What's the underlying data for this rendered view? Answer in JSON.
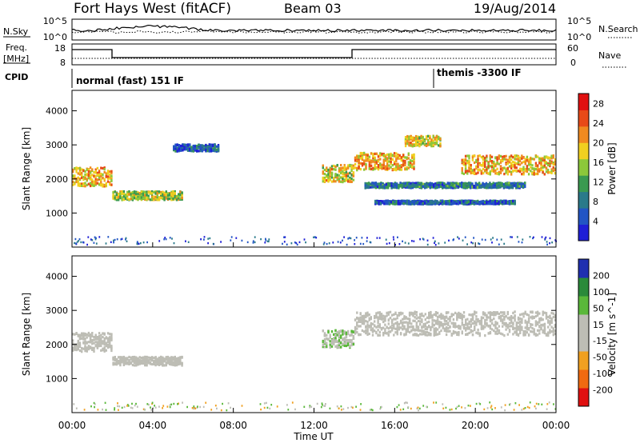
{
  "header": {
    "station": "Fort Hays West (fitACF)",
    "beam": "Beam 03",
    "date": "19/Aug/2014"
  },
  "noise_panel": {
    "left_label": "N.Sky",
    "right_label": "N.Search",
    "left_ticks": [
      "10^5",
      "10^0"
    ],
    "right_ticks": [
      "10^5",
      "10^0"
    ]
  },
  "freq_panel": {
    "left_label_1": "Freq.",
    "left_label_2": "[MHz]",
    "right_label": "Nave",
    "left_ticks": [
      "18",
      "8"
    ],
    "right_ticks": [
      "60",
      "0"
    ]
  },
  "cpid_panel": {
    "label": "CPID",
    "modes": [
      {
        "name": "normal (fast) 151 IF",
        "start_hour": 0
      },
      {
        "name": "themis -3300 IF",
        "start_hour": 18
      }
    ]
  },
  "colors": {
    "power_scale": [
      "#1f1fd6",
      "#2255c4",
      "#2a7a8a",
      "#3a9a50",
      "#8cc83a",
      "#f0d020",
      "#f08a20",
      "#e84a18",
      "#e01010"
    ],
    "velocity_scale": [
      "#e01010",
      "#f06a10",
      "#f0a020",
      "#bdbdb5",
      "#bdbdb5",
      "#5ab83a",
      "#2a8a3a",
      "#1f2fb0"
    ]
  },
  "chart_data": [
    {
      "type": "heatmap",
      "title": "",
      "xlabel": "",
      "ylabel": "Slant Range [km]",
      "xlim": [
        0,
        24
      ],
      "ylim": [
        0,
        4600
      ],
      "y_ticks": [
        "1000",
        "2000",
        "3000",
        "4000"
      ],
      "colorbar": {
        "label": "Power [dB]",
        "ticks": [
          "4",
          "8",
          "12",
          "16",
          "20",
          "24",
          "28"
        ],
        "range": [
          0,
          30
        ]
      },
      "echo_regions": [
        {
          "start_hour": 0.0,
          "end_hour": 2.0,
          "range_center_km": 2050,
          "range_width_km": 550,
          "power_db": 20
        },
        {
          "start_hour": 2.0,
          "end_hour": 5.5,
          "range_center_km": 1500,
          "range_width_km": 250,
          "power_db": 16
        },
        {
          "start_hour": 5.0,
          "end_hour": 7.3,
          "range_center_km": 2900,
          "range_width_km": 200,
          "power_db": 6
        },
        {
          "start_hour": 12.4,
          "end_hour": 14.0,
          "range_center_km": 2150,
          "range_width_km": 500,
          "power_db": 18
        },
        {
          "start_hour": 14.0,
          "end_hour": 17.0,
          "range_center_km": 2500,
          "range_width_km": 500,
          "power_db": 20
        },
        {
          "start_hour": 16.5,
          "end_hour": 18.3,
          "range_center_km": 3100,
          "range_width_km": 300,
          "power_db": 18
        },
        {
          "start_hour": 19.3,
          "end_hour": 24.0,
          "range_center_km": 2400,
          "range_width_km": 550,
          "power_db": 20
        },
        {
          "start_hour": 14.5,
          "end_hour": 22.5,
          "range_center_km": 1800,
          "range_width_km": 150,
          "power_db": 8
        },
        {
          "start_hour": 15.0,
          "end_hour": 22.0,
          "range_center_km": 1300,
          "range_width_km": 100,
          "power_db": 6
        }
      ]
    },
    {
      "type": "heatmap",
      "title": "",
      "xlabel": "Time UT",
      "ylabel": "Slant Range [km]",
      "xlim": [
        0,
        24
      ],
      "ylim": [
        0,
        4600
      ],
      "x_ticks": [
        "00:00",
        "04:00",
        "08:00",
        "12:00",
        "16:00",
        "20:00",
        "00:00"
      ],
      "y_ticks": [
        "1000",
        "2000",
        "3000",
        "4000"
      ],
      "colorbar": {
        "label": "Velocity [m s^-1]",
        "ticks": [
          "200",
          "100",
          "50",
          "15",
          "-15",
          "-50",
          "-100",
          "-200"
        ],
        "range": [
          -250,
          250
        ]
      },
      "echo_regions": [
        {
          "start_hour": 0.0,
          "end_hour": 2.0,
          "range_center_km": 2050,
          "range_width_km": 550,
          "velocity_ms": 0
        },
        {
          "start_hour": 2.0,
          "end_hour": 5.5,
          "range_center_km": 1500,
          "range_width_km": 250,
          "velocity_ms": -20
        },
        {
          "start_hour": 12.4,
          "end_hour": 14.0,
          "range_center_km": 2150,
          "range_width_km": 500,
          "velocity_ms": 60
        },
        {
          "start_hour": 14.0,
          "end_hour": 24.0,
          "range_center_km": 2600,
          "range_width_km": 700,
          "velocity_ms": 0
        }
      ]
    }
  ]
}
